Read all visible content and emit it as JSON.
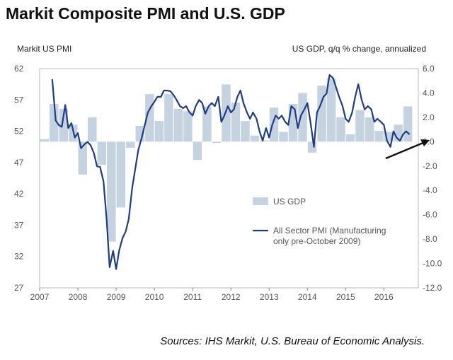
{
  "title": "Markit Composite PMI and U.S. GDP",
  "source": "Sources: IHS Markit, U.S. Bureau of Economic Analysis.",
  "chart_data": {
    "type": "bar+line",
    "left_axis": {
      "label": "Markit US PMI",
      "ticks": [
        "62",
        "57",
        "52",
        "47",
        "42",
        "37",
        "32",
        "27"
      ],
      "range": [
        27,
        62
      ]
    },
    "right_axis": {
      "label": "US GDP, q/q % change, annualized",
      "ticks": [
        "6.0",
        "4.0",
        "2.0",
        "0.0",
        "-2.0",
        "-4.0",
        "-6.0",
        "-8.0",
        "-10.0",
        "-12.0"
      ],
      "range": [
        -12,
        6
      ]
    },
    "x_ticks": [
      "2007",
      "2008",
      "2009",
      "2010",
      "2011",
      "2012",
      "2013",
      "2014",
      "2015",
      "2016"
    ],
    "legend": {
      "gdp": "US GDP",
      "pmi": "All Sector PMI (Manufacturing only pre-October 2009)"
    },
    "gdp": {
      "name": "US GDP",
      "color": "#c5d3e0",
      "quarters": [
        "2007Q1",
        "2007Q2",
        "2007Q3",
        "2007Q4",
        "2008Q1",
        "2008Q2",
        "2008Q3",
        "2008Q4",
        "2009Q1",
        "2009Q2",
        "2009Q3",
        "2009Q4",
        "2010Q1",
        "2010Q2",
        "2010Q3",
        "2010Q4",
        "2011Q1",
        "2011Q2",
        "2011Q3",
        "2011Q4",
        "2012Q1",
        "2012Q2",
        "2012Q3",
        "2012Q4",
        "2013Q1",
        "2013Q2",
        "2013Q3",
        "2013Q4",
        "2014Q1",
        "2014Q2",
        "2014Q3",
        "2014Q4",
        "2015Q1",
        "2015Q2",
        "2015Q3",
        "2015Q4",
        "2016Q1",
        "2016Q2",
        "2016Q3"
      ],
      "values": [
        0.2,
        3.1,
        2.7,
        1.4,
        -2.7,
        2.0,
        -1.9,
        -8.2,
        -5.4,
        -0.5,
        1.3,
        3.9,
        1.7,
        3.9,
        2.7,
        2.5,
        -1.5,
        2.9,
        -0.1,
        4.7,
        3.2,
        1.7,
        0.5,
        0.1,
        2.8,
        0.8,
        3.1,
        4.0,
        -0.9,
        4.6,
        5.2,
        2.0,
        0.6,
        2.6,
        2.0,
        0.9,
        0.8,
        1.4,
        2.9
      ]
    },
    "pmi": {
      "name": "All Sector PMI (Manufacturing only pre-October 2009)",
      "color": "#1f3c88",
      "x": [
        2007.33,
        2007.42,
        2007.5,
        2007.58,
        2007.67,
        2007.75,
        2007.83,
        2007.92,
        2008.0,
        2008.08,
        2008.17,
        2008.25,
        2008.33,
        2008.42,
        2008.5,
        2008.58,
        2008.67,
        2008.75,
        2008.83,
        2008.92,
        2009.0,
        2009.08,
        2009.17,
        2009.25,
        2009.33,
        2009.42,
        2009.5,
        2009.58,
        2009.67,
        2009.75,
        2009.83,
        2009.92,
        2010.0,
        2010.08,
        2010.17,
        2010.25,
        2010.33,
        2010.42,
        2010.5,
        2010.58,
        2010.67,
        2010.75,
        2010.83,
        2010.92,
        2011.0,
        2011.08,
        2011.17,
        2011.25,
        2011.33,
        2011.42,
        2011.5,
        2011.58,
        2011.67,
        2011.75,
        2011.83,
        2011.92,
        2012.0,
        2012.08,
        2012.17,
        2012.25,
        2012.33,
        2012.42,
        2012.5,
        2012.58,
        2012.67,
        2012.75,
        2012.83,
        2012.92,
        2013.0,
        2013.08,
        2013.17,
        2013.25,
        2013.33,
        2013.42,
        2013.5,
        2013.58,
        2013.67,
        2013.75,
        2013.83,
        2013.92,
        2014.0,
        2014.08,
        2014.17,
        2014.25,
        2014.33,
        2014.42,
        2014.5,
        2014.58,
        2014.67,
        2014.75,
        2014.83,
        2014.92,
        2015.0,
        2015.08,
        2015.17,
        2015.25,
        2015.33,
        2015.42,
        2015.5,
        2015.58,
        2015.67,
        2015.75,
        2015.83,
        2015.92,
        2016.0,
        2016.08,
        2016.17,
        2016.25,
        2016.33,
        2016.42,
        2016.5,
        2016.58,
        2016.67
      ],
      "values": [
        60.3,
        53.7,
        53.0,
        52.7,
        56.2,
        52.5,
        53.3,
        51.0,
        51.7,
        49.3,
        49.9,
        50.3,
        49.8,
        48.5,
        46.4,
        46.3,
        44.0,
        38.0,
        30.3,
        32.9,
        30.0,
        33.0,
        35.0,
        36.0,
        38.0,
        43.0,
        46.0,
        49.0,
        51.0,
        53.0,
        55.0,
        56.0,
        56.7,
        57.5,
        57.5,
        58.5,
        58.5,
        58.4,
        57.8,
        57.0,
        56.0,
        55.7,
        56.0,
        55.0,
        54.5,
        56.0,
        57.0,
        56.5,
        54.8,
        56.0,
        56.5,
        56.0,
        57.5,
        53.5,
        54.5,
        56.0,
        55.0,
        55.5,
        57.5,
        58.5,
        56.5,
        55.0,
        54.0,
        55.0,
        54.0,
        52.0,
        50.5,
        52.5,
        51.0,
        53.0,
        54.5,
        54.0,
        54.5,
        53.5,
        53.0,
        56.0,
        55.5,
        52.5,
        54.5,
        55.5,
        56.5,
        53.5,
        49.5,
        55.0,
        56.0,
        57.5,
        58.0,
        61.0,
        60.5,
        59.0,
        57.5,
        56.0,
        54.0,
        53.5,
        55.0,
        57.5,
        59.5,
        57.0,
        55.5,
        56.0,
        55.5,
        53.5,
        54.0,
        53.5,
        53.0,
        50.5,
        49.5,
        52.0,
        51.0,
        50.5,
        51.5,
        52.0,
        51.5
      ]
    }
  }
}
